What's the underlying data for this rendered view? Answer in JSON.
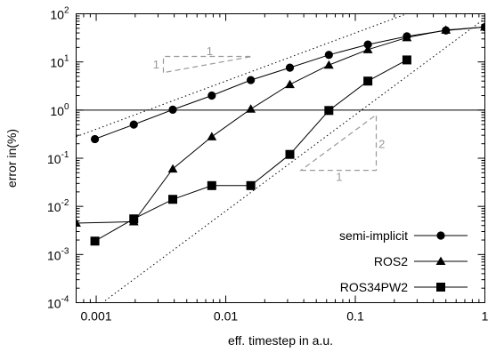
{
  "chart_data": {
    "type": "line",
    "title": "",
    "xlabel": "eff. timestep in a.u.",
    "ylabel": "error in(%)",
    "x_scale": "log",
    "y_scale": "log",
    "xlim": [
      0.0007,
      1
    ],
    "ylim": [
      0.0001,
      100
    ],
    "x_ticks": [
      {
        "value": 0.001,
        "label": "0.001"
      },
      {
        "value": 0.01,
        "label": "0.01"
      },
      {
        "value": 0.1,
        "label": "0.1"
      },
      {
        "value": 1,
        "label": "1"
      }
    ],
    "y_ticks": [
      {
        "value": 0.0001,
        "base": "10",
        "exp": "-4"
      },
      {
        "value": 0.001,
        "base": "10",
        "exp": "-3"
      },
      {
        "value": 0.01,
        "base": "10",
        "exp": "-2"
      },
      {
        "value": 0.1,
        "base": "10",
        "exp": "-1"
      },
      {
        "value": 1,
        "base": "10",
        "exp": "0"
      },
      {
        "value": 10,
        "base": "10",
        "exp": "1"
      },
      {
        "value": 100,
        "base": "10",
        "exp": "2"
      }
    ],
    "grid": false,
    "legend_position": "bottom-right",
    "series": [
      {
        "name": "semi-implicit",
        "marker": "circle",
        "color": "#000000",
        "x": [
          0.000977,
          0.00195,
          0.0039,
          0.0078,
          0.0156,
          0.03125,
          0.0625,
          0.125,
          0.25,
          0.5,
          1.0
        ],
        "y": [
          0.25,
          0.5,
          1.02,
          2.0,
          4.2,
          7.6,
          14,
          23,
          34,
          45,
          53
        ]
      },
      {
        "name": "ROS2",
        "marker": "triangle",
        "color": "#000000",
        "x": [
          0.0007,
          0.00195,
          0.0039,
          0.0078,
          0.0156,
          0.03125,
          0.0625,
          0.125,
          0.25,
          0.5,
          1.0
        ],
        "y": [
          0.0045,
          0.0048,
          0.06,
          0.28,
          1.05,
          3.4,
          8.6,
          18,
          32,
          46,
          53
        ]
      },
      {
        "name": "ROS34PW2",
        "marker": "square",
        "color": "#000000",
        "x": [
          0.000977,
          0.00195,
          0.0039,
          0.0078,
          0.0156,
          0.03125,
          0.0625,
          0.125,
          0.25
        ],
        "y": [
          0.0019,
          0.0055,
          0.014,
          0.027,
          0.027,
          0.12,
          0.98,
          4.0,
          11
        ]
      }
    ],
    "reference_lines": [
      {
        "kind": "horizontal",
        "y": 1,
        "style": "solid"
      },
      {
        "kind": "slope",
        "slope": 1,
        "through": [
          0.001,
          0.4
        ],
        "style": "dotted"
      },
      {
        "kind": "slope",
        "slope": 2,
        "through": [
          0.001,
          8e-05
        ],
        "style": "dotted"
      }
    ],
    "slope_triangles": [
      {
        "corners": [
          [
            0.0033,
            6
          ],
          [
            0.0033,
            13
          ],
          [
            0.016,
            13
          ]
        ],
        "labels": [
          {
            "text": "1",
            "at": [
              0.0075,
              17
            ]
          },
          {
            "text": "1",
            "at": [
              0.0029,
              9
            ]
          }
        ]
      },
      {
        "corners": [
          [
            0.038,
            0.056
          ],
          [
            0.145,
            0.056
          ],
          [
            0.145,
            0.8
          ]
        ],
        "labels": [
          {
            "text": "2",
            "at": [
              0.16,
              0.2
            ]
          },
          {
            "text": "1",
            "at": [
              0.075,
              0.042
            ]
          }
        ]
      }
    ],
    "colors": {
      "reference": "#999999",
      "axis": "#000000"
    }
  }
}
